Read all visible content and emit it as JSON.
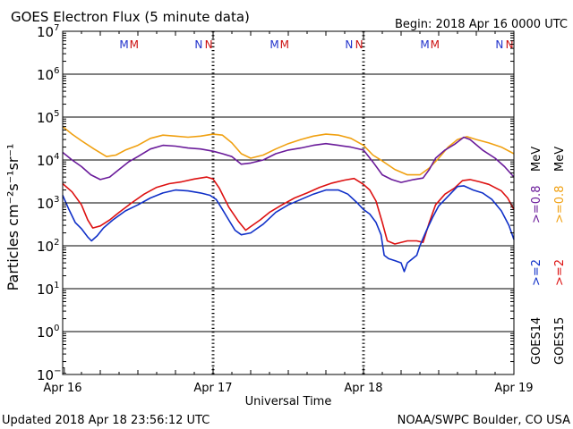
{
  "chart_data": {
    "type": "line",
    "title": "GOES Electron Flux (5 minute data)",
    "begin_label": "Begin: 2018 Apr 16 0000 UTC",
    "xlabel": "Universal Time",
    "ylabel": "Particles cm⁻²s⁻¹sr⁻¹",
    "y_scale": "log",
    "ylim": [
      0.1,
      10000000
    ],
    "xlim": [
      0,
      72
    ],
    "x_ticks": [
      {
        "label": "Apr 16",
        "hour": 0
      },
      {
        "label": "Apr 17",
        "hour": 24
      },
      {
        "label": "Apr 18",
        "hour": 48
      },
      {
        "label": "Apr 19",
        "hour": 72
      }
    ],
    "y_ticks": [
      {
        "base": "10",
        "exp": "7"
      },
      {
        "base": "10",
        "exp": "6"
      },
      {
        "base": "10",
        "exp": "5"
      },
      {
        "base": "10",
        "exp": "4"
      },
      {
        "base": "10",
        "exp": "3"
      },
      {
        "base": "10",
        "exp": "2"
      },
      {
        "base": "10",
        "exp": "1"
      },
      {
        "base": "10",
        "exp": "0"
      },
      {
        "base": "10",
        "exp": "−1"
      }
    ],
    "threshold": 1000,
    "grid": true,
    "markers": [
      {
        "label": "M",
        "hour": 9.8,
        "color": "#2233cc"
      },
      {
        "label": "M",
        "hour": 11.4,
        "color": "#cc1111"
      },
      {
        "label": "N",
        "hour": 21.7,
        "color": "#2233cc"
      },
      {
        "label": "N",
        "hour": 23.3,
        "color": "#cc1111"
      },
      {
        "label": "M",
        "hour": 33.8,
        "color": "#2233cc"
      },
      {
        "label": "M",
        "hour": 35.4,
        "color": "#cc1111"
      },
      {
        "label": "N",
        "hour": 45.7,
        "color": "#2233cc"
      },
      {
        "label": "N",
        "hour": 47.3,
        "color": "#cc1111"
      },
      {
        "label": "M",
        "hour": 57.8,
        "color": "#2233cc"
      },
      {
        "label": "M",
        "hour": 59.4,
        "color": "#cc1111"
      },
      {
        "label": "N",
        "hour": 69.7,
        "color": "#2233cc"
      },
      {
        "label": "N",
        "hour": 71.3,
        "color": "#cc1111"
      }
    ],
    "series": [
      {
        "name": "GOES15 >=0.8 MeV",
        "color": "#f0a010",
        "points": [
          [
            0,
            60000
          ],
          [
            1.5,
            40000
          ],
          [
            3,
            28000
          ],
          [
            5,
            18000
          ],
          [
            7,
            12000
          ],
          [
            8.5,
            13000
          ],
          [
            10,
            17000
          ],
          [
            12,
            22000
          ],
          [
            14,
            32000
          ],
          [
            16,
            38000
          ],
          [
            18,
            36000
          ],
          [
            20,
            34000
          ],
          [
            22,
            36000
          ],
          [
            24,
            40000
          ],
          [
            25.5,
            38000
          ],
          [
            27,
            25000
          ],
          [
            28.5,
            14000
          ],
          [
            30,
            11000
          ],
          [
            32,
            13000
          ],
          [
            34,
            18000
          ],
          [
            36,
            24000
          ],
          [
            38,
            30000
          ],
          [
            40,
            36000
          ],
          [
            42,
            40000
          ],
          [
            44,
            38000
          ],
          [
            46,
            32000
          ],
          [
            48,
            22000
          ],
          [
            49.5,
            13000
          ],
          [
            51,
            9500
          ],
          [
            53,
            6000
          ],
          [
            55,
            4500
          ],
          [
            57,
            4500
          ],
          [
            58.5,
            6500
          ],
          [
            60,
            11000
          ],
          [
            61.5,
            20000
          ],
          [
            63,
            30000
          ],
          [
            64.5,
            35000
          ],
          [
            66,
            30000
          ],
          [
            68,
            25000
          ],
          [
            70,
            20000
          ],
          [
            72,
            14000
          ]
        ]
      },
      {
        "name": "GOES14 >=0.8 MeV",
        "color": "#6a1b9a",
        "points": [
          [
            0,
            15000
          ],
          [
            1.5,
            10000
          ],
          [
            3,
            7000
          ],
          [
            4.5,
            4500
          ],
          [
            6,
            3500
          ],
          [
            7.5,
            4000
          ],
          [
            9,
            6000
          ],
          [
            10.5,
            9000
          ],
          [
            12,
            12000
          ],
          [
            14,
            18000
          ],
          [
            16,
            22000
          ],
          [
            18,
            21000
          ],
          [
            20,
            19000
          ],
          [
            22,
            18000
          ],
          [
            24,
            16000
          ],
          [
            25.5,
            14000
          ],
          [
            27,
            12000
          ],
          [
            28.5,
            8000
          ],
          [
            30,
            8500
          ],
          [
            32,
            10000
          ],
          [
            34,
            14000
          ],
          [
            36,
            17000
          ],
          [
            38,
            19000
          ],
          [
            40,
            22000
          ],
          [
            42,
            24000
          ],
          [
            44,
            22000
          ],
          [
            46,
            20000
          ],
          [
            48,
            17000
          ],
          [
            49.5,
            9000
          ],
          [
            51,
            4500
          ],
          [
            52.5,
            3500
          ],
          [
            54,
            3000
          ],
          [
            56,
            3500
          ],
          [
            57.5,
            3800
          ],
          [
            58.5,
            6000
          ],
          [
            59.5,
            11000
          ],
          [
            61,
            17000
          ],
          [
            62.5,
            23000
          ],
          [
            64,
            34000
          ],
          [
            65,
            30000
          ],
          [
            67,
            17000
          ],
          [
            69,
            11000
          ],
          [
            70.5,
            7000
          ],
          [
            72,
            4000
          ]
        ]
      },
      {
        "name": ">=2 MeV GOES15",
        "color": "#dd1111",
        "points": [
          [
            0,
            2800
          ],
          [
            1.5,
            1800
          ],
          [
            3,
            900
          ],
          [
            4,
            400
          ],
          [
            4.8,
            260
          ],
          [
            6,
            290
          ],
          [
            7.5,
            400
          ],
          [
            9,
            600
          ],
          [
            11,
            1000
          ],
          [
            13,
            1600
          ],
          [
            15,
            2300
          ],
          [
            17,
            2800
          ],
          [
            19,
            3100
          ],
          [
            21,
            3600
          ],
          [
            23,
            4000
          ],
          [
            24,
            3600
          ],
          [
            25,
            2200
          ],
          [
            26.5,
            800
          ],
          [
            28,
            380
          ],
          [
            29.2,
            230
          ],
          [
            30,
            280
          ],
          [
            31.5,
            400
          ],
          [
            33,
            600
          ],
          [
            35,
            900
          ],
          [
            37,
            1300
          ],
          [
            39,
            1700
          ],
          [
            41,
            2300
          ],
          [
            43,
            2900
          ],
          [
            45,
            3400
          ],
          [
            46.5,
            3700
          ],
          [
            48,
            2700
          ],
          [
            49,
            2000
          ],
          [
            50,
            1100
          ],
          [
            51,
            350
          ],
          [
            51.8,
            130
          ],
          [
            53,
            110
          ],
          [
            55,
            130
          ],
          [
            56.5,
            130
          ],
          [
            57.5,
            120
          ],
          [
            58.5,
            350
          ],
          [
            59.5,
            900
          ],
          [
            61,
            1600
          ],
          [
            62.5,
            2200
          ],
          [
            63.8,
            3300
          ],
          [
            65,
            3500
          ],
          [
            66.5,
            3100
          ],
          [
            68,
            2700
          ],
          [
            70,
            1900
          ],
          [
            71,
            1300
          ],
          [
            72,
            700
          ]
        ]
      },
      {
        "name": ">=2 MeV GOES14",
        "color": "#1030c8",
        "points": [
          [
            0,
            1500
          ],
          [
            1,
            700
          ],
          [
            2,
            350
          ],
          [
            3,
            250
          ],
          [
            4,
            160
          ],
          [
            4.6,
            130
          ],
          [
            5.5,
            170
          ],
          [
            6.5,
            260
          ],
          [
            8,
            400
          ],
          [
            10,
            650
          ],
          [
            12,
            900
          ],
          [
            14,
            1300
          ],
          [
            16,
            1700
          ],
          [
            18,
            2000
          ],
          [
            20,
            1900
          ],
          [
            22,
            1700
          ],
          [
            23.5,
            1500
          ],
          [
            24.5,
            1200
          ],
          [
            25.5,
            700
          ],
          [
            26.5,
            400
          ],
          [
            27.5,
            230
          ],
          [
            28.5,
            180
          ],
          [
            30,
            200
          ],
          [
            32,
            320
          ],
          [
            34,
            600
          ],
          [
            36,
            900
          ],
          [
            38,
            1200
          ],
          [
            40,
            1600
          ],
          [
            42,
            2000
          ],
          [
            44,
            2000
          ],
          [
            45.5,
            1600
          ],
          [
            47,
            1000
          ],
          [
            48,
            700
          ],
          [
            49,
            550
          ],
          [
            50,
            350
          ],
          [
            50.8,
            180
          ],
          [
            51.3,
            60
          ],
          [
            52,
            50
          ],
          [
            53,
            45
          ],
          [
            54,
            40
          ],
          [
            54.5,
            25
          ],
          [
            55,
            40
          ],
          [
            56.5,
            60
          ],
          [
            57,
            100
          ],
          [
            58,
            220
          ],
          [
            59,
            450
          ],
          [
            60,
            850
          ],
          [
            61,
            1200
          ],
          [
            62,
            1700
          ],
          [
            63,
            2400
          ],
          [
            64,
            2500
          ],
          [
            65.5,
            2000
          ],
          [
            67,
            1700
          ],
          [
            68.5,
            1200
          ],
          [
            70,
            650
          ],
          [
            71.2,
            300
          ],
          [
            72,
            140
          ]
        ]
      }
    ],
    "legend_texts": {
      "goes14": "GOES14",
      "goes15": "GOES15",
      "e2_14": ">=2",
      "e2_15": ">=2",
      "e08_14": ">=0.8",
      "e08_15": ">=0.8",
      "mev_a": "MeV",
      "mev_b": "MeV"
    }
  },
  "footer": {
    "updated": "Updated 2018 Apr 18 23:56:12 UTC",
    "credit": "NOAA/SWPC Boulder, CO USA"
  }
}
